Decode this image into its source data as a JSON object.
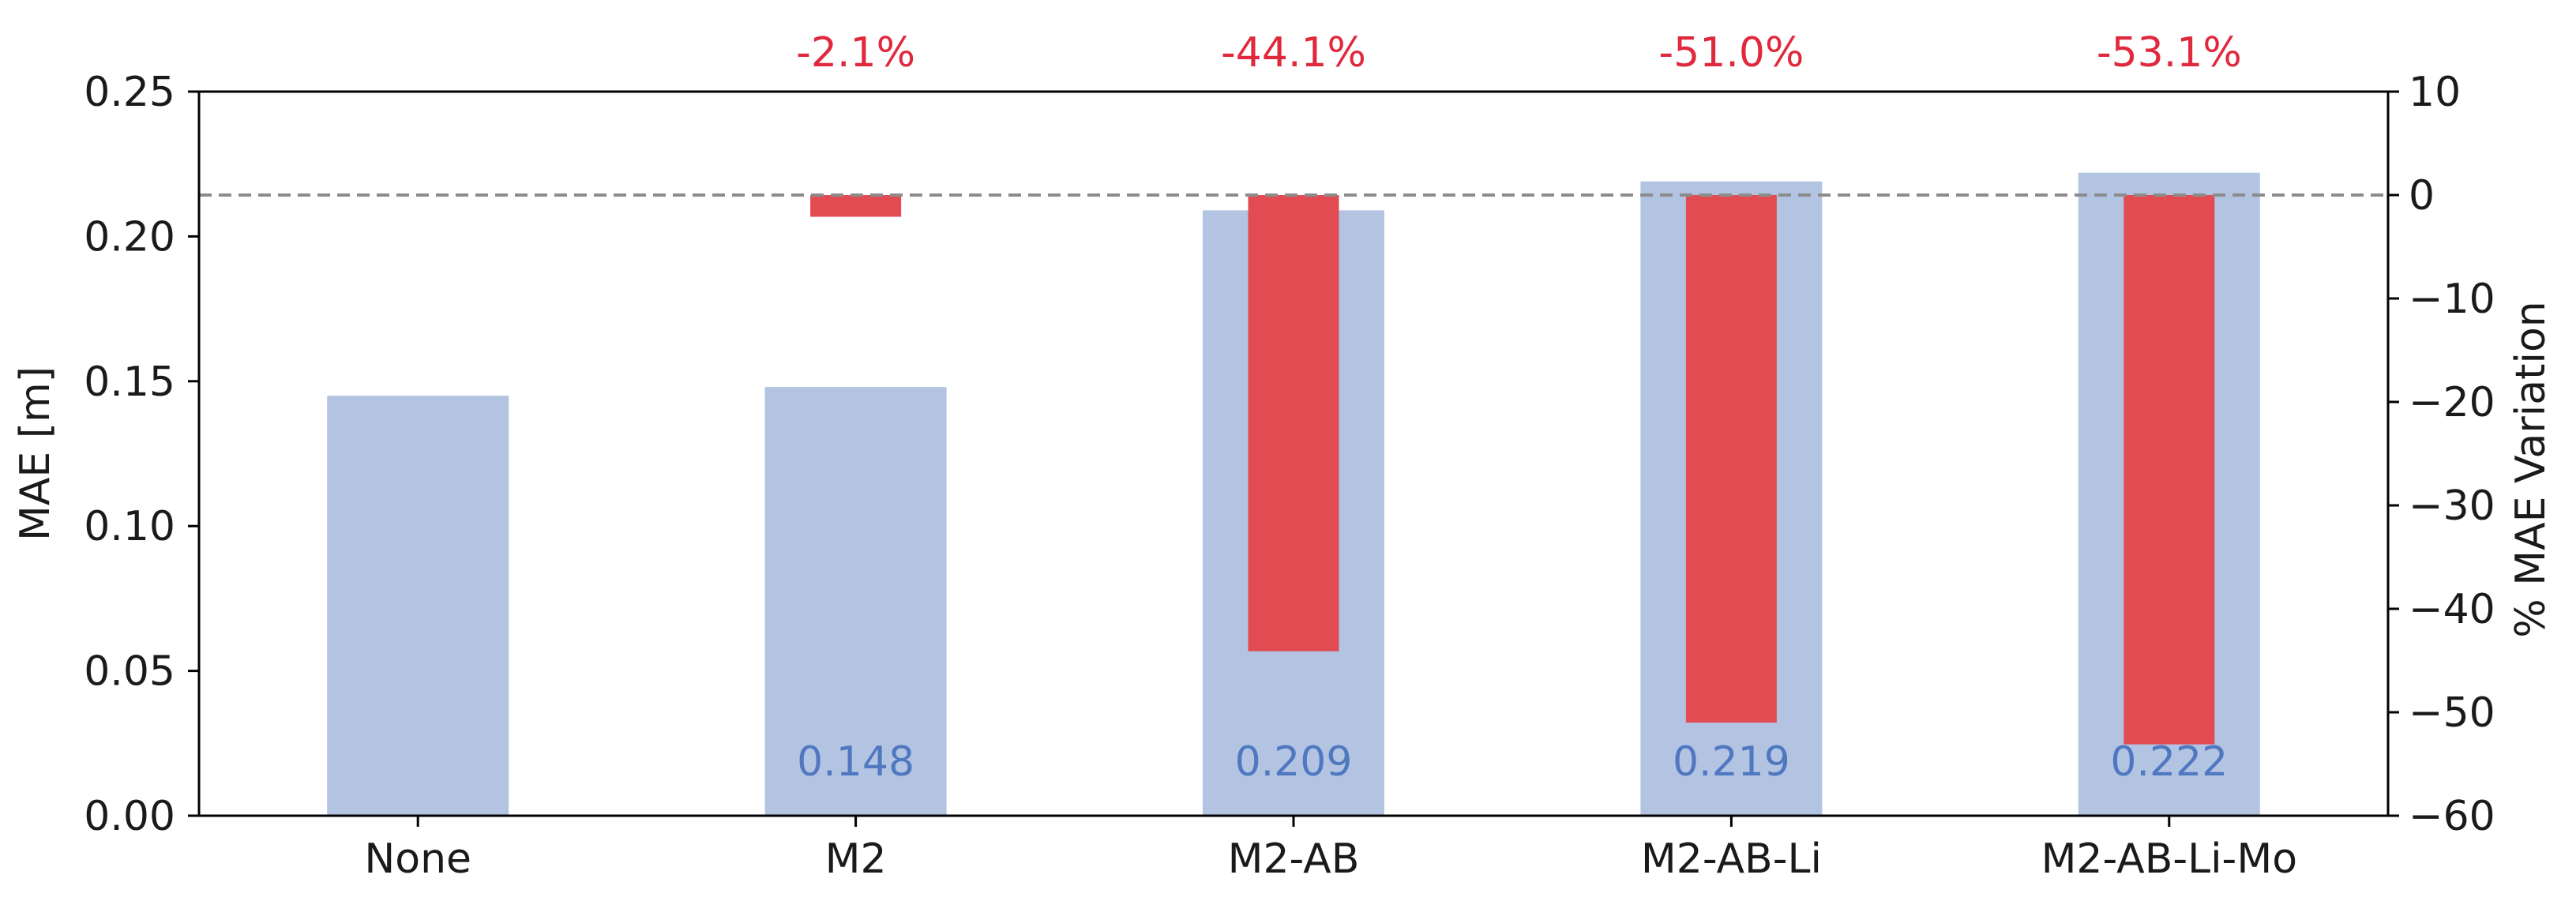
{
  "chart_data": {
    "type": "bar",
    "categories": [
      "None",
      "M2",
      "M2-AB",
      "M2-AB-Li",
      "M2-AB-Li-Mo"
    ],
    "title": "",
    "ylabel": "MAE [m]",
    "y2label": "% MAE Variation",
    "ylim": [
      0,
      0.25
    ],
    "y2lim": [
      -60,
      10
    ],
    "yticks": [
      "0.00",
      "0.05",
      "0.10",
      "0.15",
      "0.20",
      "0.25"
    ],
    "y2ticks": [
      "10",
      "0",
      "−10",
      "−20",
      "−30",
      "−40",
      "−50",
      "−60"
    ],
    "y2tick_values": [
      10,
      0,
      -10,
      -20,
      -30,
      -40,
      -50,
      -60
    ],
    "series": [
      {
        "axis": "left",
        "values": [
          0.145,
          0.148,
          0.209,
          0.219,
          0.222
        ],
        "labels": [
          "",
          "0.148",
          "0.209",
          "0.219",
          "0.222"
        ],
        "color": "#b3c4e3",
        "label_color": "#5078c0"
      },
      {
        "axis": "right",
        "values": [
          null,
          -2.1,
          -44.1,
          -51.0,
          -53.1
        ],
        "labels": [
          "",
          "-2.1%",
          "-44.1%",
          "-51.0%",
          "-53.1%"
        ],
        "color": "#e34b52",
        "label_color": "#e0293d"
      }
    ],
    "reference_line": {
      "axis": "right",
      "value": 0,
      "style": "dashed",
      "color": "#8c8c8c"
    },
    "grid": false,
    "legend": "none"
  }
}
